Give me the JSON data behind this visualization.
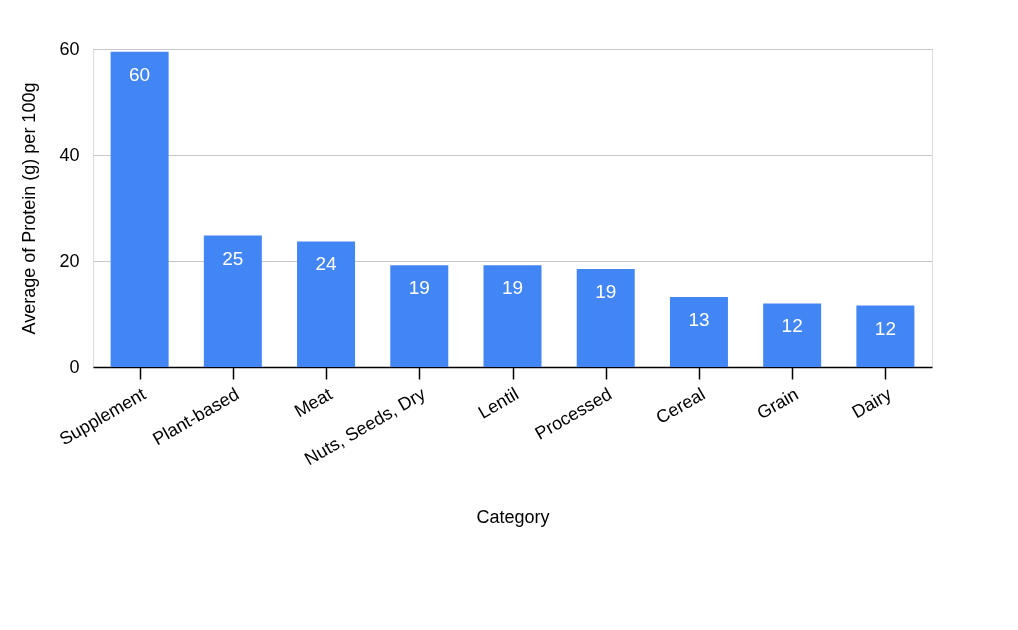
{
  "chart_data": {
    "type": "bar",
    "xlabel": "Category",
    "ylabel": "Average of Protein (g) per 100g",
    "categories": [
      "Supplement",
      "Plant-based",
      "Meat",
      "Nuts, Seeds, Dry",
      "Lentil",
      "Processed",
      "Cereal",
      "Grain",
      "Dairy"
    ],
    "values": [
      59.5,
      24.8,
      23.7,
      19.2,
      19.2,
      18.5,
      13.2,
      12.0,
      11.6
    ],
    "value_labels": [
      "60",
      "25",
      "24",
      "19",
      "19",
      "19",
      "13",
      "12",
      "12"
    ],
    "color": "#4285f4",
    "ylim": [
      0,
      60
    ],
    "yticks": [
      0,
      20,
      40,
      60
    ],
    "grid": "y"
  }
}
